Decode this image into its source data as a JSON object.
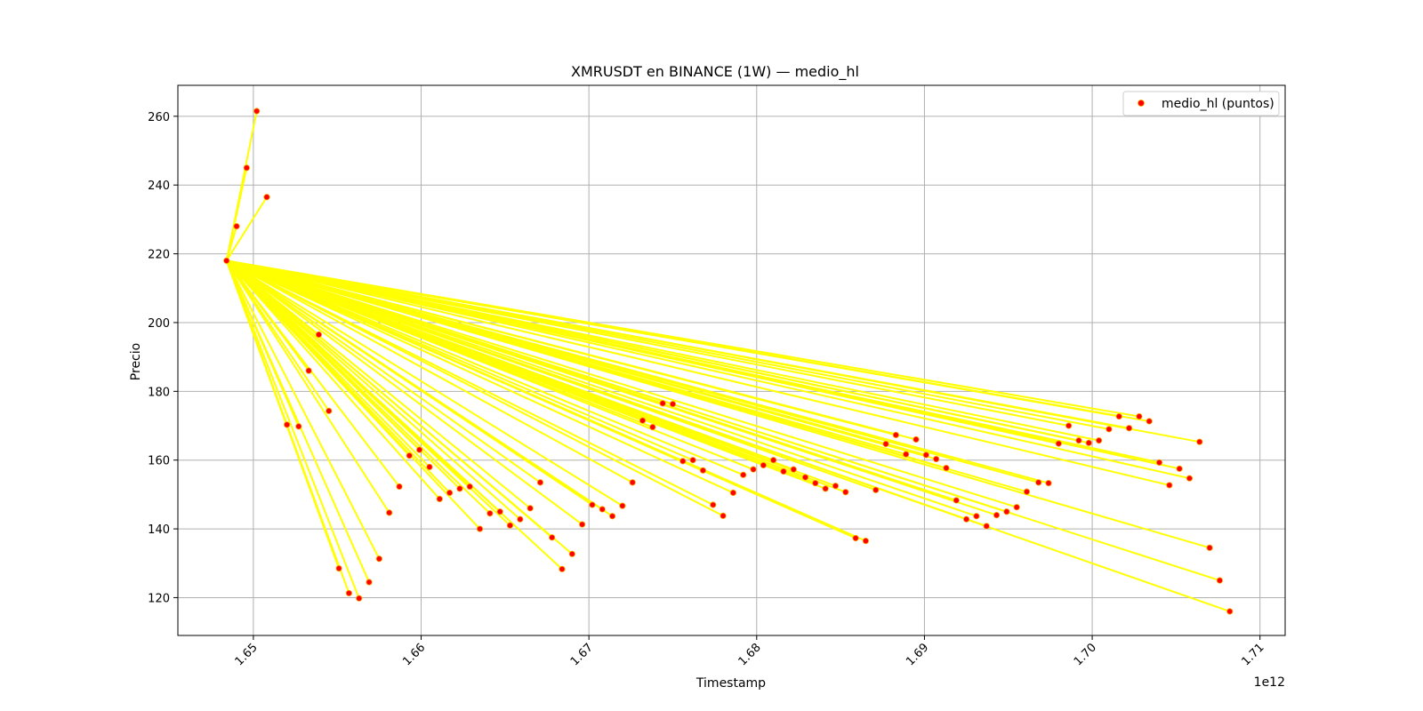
{
  "chart_data": {
    "type": "scatter",
    "title": "XMRUSDT en BINANCE (1W) — medio_hl",
    "xlabel": "Timestamp",
    "ylabel": "Precio",
    "x_offset_label": "1e12",
    "xlim": [
      1.6455,
      1.7115
    ],
    "ylim": [
      109.0,
      269.0
    ],
    "x_ticks": [
      1.65,
      1.66,
      1.67,
      1.68,
      1.69,
      1.7,
      1.71
    ],
    "x_tick_labels": [
      "1.65",
      "1.66",
      "1.67",
      "1.68",
      "1.69",
      "1.70",
      "1.71"
    ],
    "y_ticks": [
      120,
      140,
      160,
      180,
      200,
      220,
      240,
      260
    ],
    "y_tick_labels": [
      "120",
      "140",
      "160",
      "180",
      "200",
      "220",
      "240",
      "260"
    ],
    "grid": true,
    "legend_position": "top-right",
    "colors": {
      "line": "#ffff00",
      "marker": "#ff0000",
      "marker_edge": "#ffaa00"
    },
    "series": [
      {
        "name": "medio_hl (puntos)",
        "x": [
          1.6484,
          1.649,
          1.6496,
          1.6502,
          1.6508,
          1.652,
          1.6527,
          1.6533,
          1.6539,
          1.6545,
          1.6551,
          1.6557,
          1.6563,
          1.6569,
          1.6575,
          1.6581,
          1.6587,
          1.6593,
          1.6599,
          1.6605,
          1.6611,
          1.6617,
          1.6623,
          1.6629,
          1.6635,
          1.6641,
          1.6647,
          1.6653,
          1.6659,
          1.6665,
          1.6671,
          1.6678,
          1.6684,
          1.669,
          1.6696,
          1.6702,
          1.6708,
          1.6714,
          1.672,
          1.6726,
          1.6732,
          1.6738,
          1.6744,
          1.675,
          1.6756,
          1.6762,
          1.6768,
          1.6774,
          1.678,
          1.6786,
          1.6792,
          1.6798,
          1.6804,
          1.681,
          1.6816,
          1.6822,
          1.6829,
          1.6835,
          1.6841,
          1.6847,
          1.6853,
          1.6859,
          1.6865,
          1.6871,
          1.6877,
          1.6883,
          1.6889,
          1.6895,
          1.6901,
          1.6907,
          1.6913,
          1.6919,
          1.6925,
          1.6931,
          1.6937,
          1.6943,
          1.6949,
          1.6955,
          1.6961,
          1.6968,
          1.6974,
          1.698,
          1.6986,
          1.6992,
          1.6998,
          1.7004,
          1.701,
          1.7016,
          1.7022,
          1.7028,
          1.7034,
          1.704,
          1.7046,
          1.7052,
          1.7058,
          1.7064,
          1.707,
          1.7076,
          1.7082
        ],
        "y": [
          218.0,
          228.0,
          245.0,
          261.5,
          236.5,
          170.3,
          169.8,
          186.0,
          196.5,
          174.3,
          128.5,
          121.3,
          119.8,
          124.5,
          131.3,
          144.7,
          152.3,
          161.3,
          163.0,
          158.0,
          148.7,
          150.5,
          151.7,
          152.3,
          140.0,
          144.5,
          145.0,
          141.0,
          142.8,
          146.0,
          153.5,
          137.5,
          128.3,
          132.7,
          141.3,
          147.0,
          145.7,
          143.7,
          146.7,
          153.5,
          171.5,
          169.6,
          176.5,
          176.3,
          159.7,
          160.0,
          157.0,
          147.0,
          143.8,
          150.5,
          155.7,
          157.3,
          158.5,
          160.0,
          156.7,
          157.3,
          155.0,
          153.3,
          151.7,
          152.5,
          150.7,
          137.3,
          136.5,
          151.3,
          164.7,
          167.3,
          161.7,
          166.0,
          161.5,
          160.3,
          157.7,
          148.3,
          142.8,
          143.7,
          140.8,
          144.0,
          145.0,
          146.3,
          150.8,
          153.5,
          153.3,
          164.8,
          170.0,
          165.7,
          165.0,
          165.7,
          169.0,
          172.7,
          169.3,
          172.7,
          171.3,
          159.3,
          152.7,
          157.5,
          154.7,
          165.3,
          134.5,
          125.0,
          116.0
        ]
      }
    ]
  }
}
